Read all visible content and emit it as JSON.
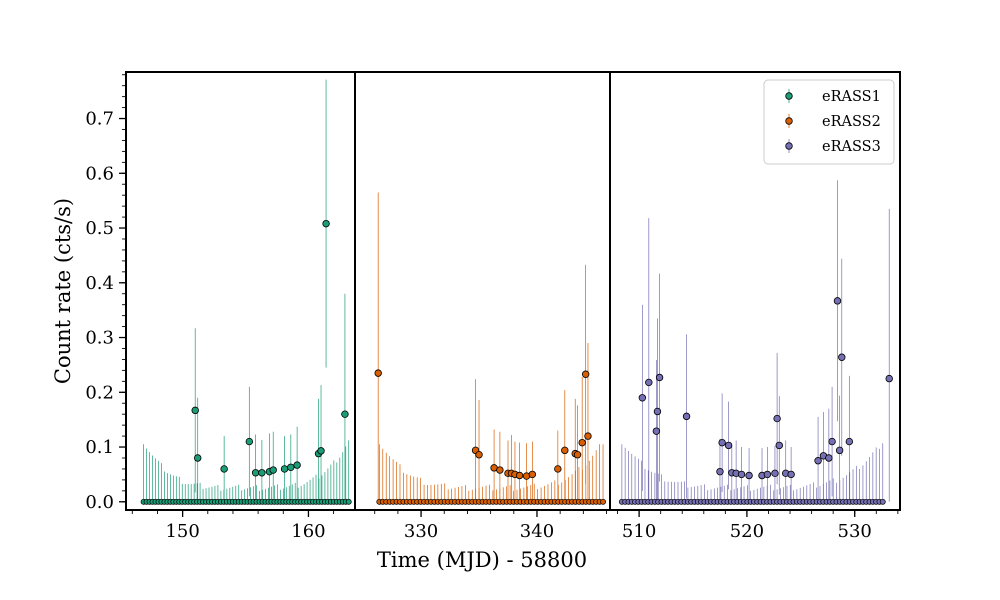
{
  "chart_data": {
    "type": "scatter",
    "title": "",
    "xlabel": "Time (MJD) - 58800",
    "ylabel": "Count rate (cts/s)",
    "ylim": [
      -0.015,
      0.785
    ],
    "y_ticks": [
      0.0,
      0.1,
      0.2,
      0.3,
      0.4,
      0.5,
      0.6,
      0.7
    ],
    "y_tick_labels": [
      "0.0",
      "0.1",
      "0.2",
      "0.3",
      "0.4",
      "0.5",
      "0.6",
      "0.7"
    ],
    "legend_position": "top-right",
    "grid": false,
    "panels": [
      {
        "series": "eRASS1",
        "xlim": [
          145.5,
          163.7
        ],
        "x_ticks": [
          150,
          160
        ],
        "x_tick_labels": [
          "150",
          "160"
        ],
        "color": "#1b9e77",
        "points": [
          {
            "x": 151.0,
            "y": 0.167,
            "err": 0.15
          },
          {
            "x": 151.2,
            "y": 0.08,
            "err": 0.11
          },
          {
            "x": 153.3,
            "y": 0.06,
            "err": 0.06
          },
          {
            "x": 155.3,
            "y": 0.11,
            "err": 0.1
          },
          {
            "x": 155.8,
            "y": 0.053,
            "err": 0.07
          },
          {
            "x": 156.3,
            "y": 0.053,
            "err": 0.06
          },
          {
            "x": 156.9,
            "y": 0.055,
            "err": 0.07
          },
          {
            "x": 157.2,
            "y": 0.058,
            "err": 0.07
          },
          {
            "x": 158.1,
            "y": 0.06,
            "err": 0.06
          },
          {
            "x": 158.6,
            "y": 0.063,
            "err": 0.06
          },
          {
            "x": 159.1,
            "y": 0.067,
            "err": 0.07
          },
          {
            "x": 160.8,
            "y": 0.088,
            "err": 0.1
          },
          {
            "x": 161.0,
            "y": 0.093,
            "err": 0.12
          },
          {
            "x": 161.4,
            "y": 0.508,
            "err": 0.263
          },
          {
            "x": 162.9,
            "y": 0.16,
            "err": 0.22
          }
        ],
        "zero_range": [
          146.9,
          163.2
        ],
        "zero_count": 70
      },
      {
        "series": "eRASS2",
        "xlim": [
          324.3,
          346.3
        ],
        "x_ticks": [
          330,
          340
        ],
        "x_tick_labels": [
          "330",
          "340"
        ],
        "color": "#d95f02",
        "points": [
          {
            "x": 326.3,
            "y": 0.235,
            "err": 0.33
          },
          {
            "x": 334.7,
            "y": 0.094,
            "err": 0.13
          },
          {
            "x": 335.0,
            "y": 0.086,
            "err": 0.1
          },
          {
            "x": 336.3,
            "y": 0.062,
            "err": 0.07
          },
          {
            "x": 336.8,
            "y": 0.058,
            "err": 0.07
          },
          {
            "x": 337.5,
            "y": 0.052,
            "err": 0.06
          },
          {
            "x": 337.8,
            "y": 0.052,
            "err": 0.07
          },
          {
            "x": 338.1,
            "y": 0.05,
            "err": 0.06
          },
          {
            "x": 338.5,
            "y": 0.048,
            "err": 0.06
          },
          {
            "x": 339.1,
            "y": 0.047,
            "err": 0.06
          },
          {
            "x": 339.6,
            "y": 0.05,
            "err": 0.06
          },
          {
            "x": 341.8,
            "y": 0.06,
            "err": 0.07
          },
          {
            "x": 342.4,
            "y": 0.094,
            "err": 0.11
          },
          {
            "x": 343.3,
            "y": 0.088,
            "err": 0.1
          },
          {
            "x": 343.5,
            "y": 0.086,
            "err": 0.09
          },
          {
            "x": 343.9,
            "y": 0.108,
            "err": 0.12
          },
          {
            "x": 344.2,
            "y": 0.233,
            "err": 0.2
          },
          {
            "x": 344.4,
            "y": 0.12,
            "err": 0.17
          }
        ],
        "zero_range": [
          326.4,
          345.7
        ],
        "zero_count": 66
      },
      {
        "series": "eRASS3",
        "xlim": [
          507.3,
          534.2
        ],
        "x_ticks": [
          510,
          520,
          530
        ],
        "x_tick_labels": [
          "510",
          "520",
          "530"
        ],
        "color": "#7570b3",
        "points": [
          {
            "x": 510.3,
            "y": 0.19,
            "err": 0.17
          },
          {
            "x": 510.9,
            "y": 0.218,
            "err": 0.3
          },
          {
            "x": 511.6,
            "y": 0.129,
            "err": 0.13
          },
          {
            "x": 511.7,
            "y": 0.165,
            "err": 0.17
          },
          {
            "x": 511.9,
            "y": 0.227,
            "err": 0.19
          },
          {
            "x": 514.4,
            "y": 0.156,
            "err": 0.15
          },
          {
            "x": 517.5,
            "y": 0.055,
            "err": 0.06
          },
          {
            "x": 517.7,
            "y": 0.108,
            "err": 0.09
          },
          {
            "x": 518.3,
            "y": 0.103,
            "err": 0.08
          },
          {
            "x": 518.6,
            "y": 0.053,
            "err": 0.05
          },
          {
            "x": 519.0,
            "y": 0.052,
            "err": 0.06
          },
          {
            "x": 519.5,
            "y": 0.05,
            "err": 0.05
          },
          {
            "x": 520.2,
            "y": 0.048,
            "err": 0.05
          },
          {
            "x": 521.4,
            "y": 0.048,
            "err": 0.05
          },
          {
            "x": 521.9,
            "y": 0.05,
            "err": 0.05
          },
          {
            "x": 522.6,
            "y": 0.052,
            "err": 0.05
          },
          {
            "x": 522.8,
            "y": 0.152,
            "err": 0.12
          },
          {
            "x": 523.0,
            "y": 0.103,
            "err": 0.09
          },
          {
            "x": 523.6,
            "y": 0.052,
            "err": 0.06
          },
          {
            "x": 524.1,
            "y": 0.05,
            "err": 0.05
          },
          {
            "x": 526.6,
            "y": 0.075,
            "err": 0.08
          },
          {
            "x": 527.1,
            "y": 0.084,
            "err": 0.08
          },
          {
            "x": 527.6,
            "y": 0.08,
            "err": 0.09
          },
          {
            "x": 527.9,
            "y": 0.11,
            "err": 0.1
          },
          {
            "x": 528.4,
            "y": 0.367,
            "err": 0.22
          },
          {
            "x": 528.6,
            "y": 0.094,
            "err": 0.1
          },
          {
            "x": 528.8,
            "y": 0.264,
            "err": 0.18
          },
          {
            "x": 529.5,
            "y": 0.11,
            "err": 0.12
          },
          {
            "x": 533.2,
            "y": 0.225,
            "err": 0.31
          }
        ],
        "zero_range": [
          508.4,
          532.6
        ],
        "zero_count": 80
      }
    ],
    "legend": [
      "eRASS1",
      "eRASS2",
      "eRASS3"
    ]
  },
  "colors": {
    "eRASS1": "#1b9e77",
    "eRASS2": "#d95f02",
    "eRASS3": "#7570b3"
  }
}
